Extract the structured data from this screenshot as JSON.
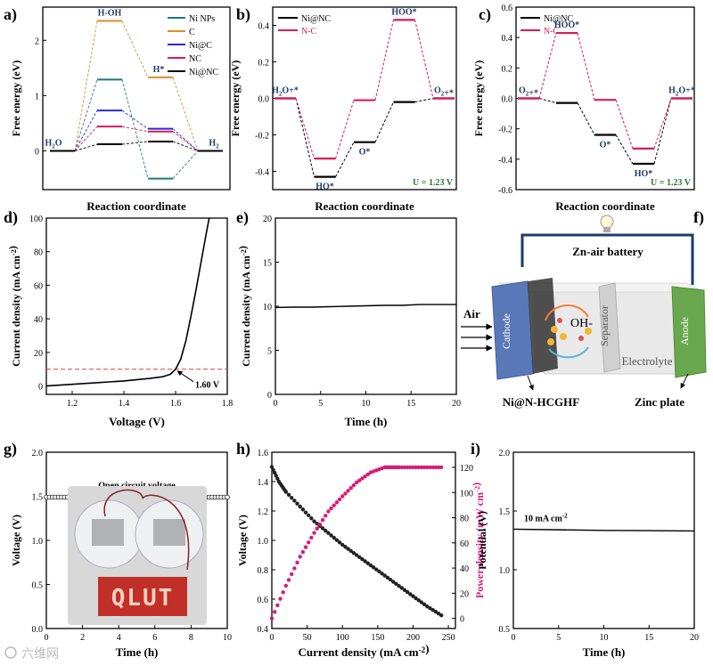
{
  "panel_letters": [
    "a)",
    "b)",
    "c)",
    "d)",
    "e)",
    "f)",
    "g)",
    "h)",
    "i)"
  ],
  "watermark": "六维网",
  "chart_data": [
    {
      "panel": "a",
      "type": "line",
      "ylabel": "Free energy (eV)",
      "xlabel": "Reaction coordinate",
      "ylim": [
        -0.7,
        2.6
      ],
      "yticks": [
        0,
        1,
        2
      ],
      "species": [
        "H2O",
        "H-OH",
        "H*",
        "H2"
      ],
      "series": [
        {
          "name": "Ni NPs",
          "color": "#1a7a7a",
          "values": [
            0,
            1.29,
            -0.5,
            0
          ]
        },
        {
          "name": "C",
          "color": "#e08a2e",
          "values": [
            0,
            2.35,
            1.33,
            0
          ]
        },
        {
          "name": "Ni@C",
          "color": "#2b2bd4",
          "values": [
            0,
            0.73,
            0.4,
            0
          ]
        },
        {
          "name": "NC",
          "color": "#d81b5a",
          "values": [
            0,
            0.44,
            0.35,
            0
          ]
        },
        {
          "name": "Ni@NC",
          "color": "#000000",
          "values": [
            0,
            0.12,
            0.17,
            0
          ]
        }
      ]
    },
    {
      "panel": "b",
      "type": "line",
      "ylabel": "Free energy (eV)",
      "xlabel": "Reaction coordinate",
      "ylim": [
        -0.5,
        0.5
      ],
      "yticks": [
        -0.4,
        -0.2,
        0.0,
        0.2,
        0.4
      ],
      "ytick_labels": [
        "-0.4",
        "-0.2",
        "0.0",
        "0.2",
        "0.4"
      ],
      "species": [
        "H2O+*",
        "HO*",
        "O*",
        "HOO*",
        "O2+*"
      ],
      "annotation": "U = 1.23 V",
      "series": [
        {
          "name": "Ni@NC",
          "color": "#000000",
          "values": [
            0,
            -0.43,
            -0.24,
            -0.02,
            0
          ]
        },
        {
          "name": "N-C",
          "color": "#d81b5a",
          "values": [
            0,
            -0.33,
            -0.01,
            0.43,
            0
          ]
        }
      ]
    },
    {
      "panel": "c",
      "type": "line",
      "ylabel": "Free energy (eV)",
      "xlabel": "Reaction coordinate",
      "ylim": [
        -0.6,
        0.6
      ],
      "yticks": [
        -0.6,
        -0.4,
        -0.2,
        0.0,
        0.2,
        0.4,
        0.6
      ],
      "ytick_labels": [
        "-0.6",
        "-0.4",
        "-0.2",
        "0.0",
        "0.2",
        "0.4",
        "0.6"
      ],
      "species": [
        "O2+*",
        "HOO*",
        "O*",
        "HO*",
        "H2O+*"
      ],
      "annotation": "U = 1.23 V",
      "series": [
        {
          "name": "Ni@NC",
          "color": "#000000",
          "values": [
            0,
            -0.03,
            -0.24,
            -0.43,
            0
          ]
        },
        {
          "name": "N-C",
          "color": "#d81b5a",
          "values": [
            0,
            0.43,
            -0.01,
            -0.33,
            0
          ]
        }
      ]
    },
    {
      "panel": "d",
      "type": "line",
      "ylabel": "Current density (mA cm-2)",
      "xlabel": "Voltage (V)",
      "xlim": [
        1.1,
        1.8
      ],
      "ylim": [
        -5,
        100
      ],
      "xticks": [
        1.2,
        1.4,
        1.6,
        1.8
      ],
      "yticks": [
        0,
        20,
        40,
        60,
        80,
        100
      ],
      "reference_line_y": 10,
      "annotation": "1.60 V",
      "x": [
        1.1,
        1.2,
        1.3,
        1.4,
        1.5,
        1.55,
        1.58,
        1.6,
        1.62,
        1.64,
        1.66,
        1.68,
        1.7,
        1.72,
        1.73
      ],
      "y": [
        0,
        1,
        2,
        3,
        4.5,
        5.5,
        7,
        10,
        16,
        27,
        42,
        58,
        75,
        92,
        100
      ]
    },
    {
      "panel": "e",
      "type": "line",
      "ylabel": "Current density (mA cm-2)",
      "xlabel": "Time (h)",
      "xlim": [
        0,
        20
      ],
      "ylim": [
        0,
        20
      ],
      "xticks": [
        0,
        5,
        10,
        15,
        20
      ],
      "yticks": [
        0,
        5,
        10,
        15,
        20
      ],
      "x": [
        0,
        2,
        4,
        6,
        8,
        10,
        12,
        14,
        16,
        18,
        20
      ],
      "y": [
        9.85,
        9.9,
        9.9,
        9.95,
        10.0,
        10.05,
        10.1,
        10.1,
        10.2,
        10.2,
        10.2
      ]
    },
    {
      "panel": "g",
      "type": "line",
      "ylabel": "Voltage (V)",
      "xlabel": "Time (h)",
      "xlim": [
        0,
        10
      ],
      "ylim": [
        0,
        2.0
      ],
      "xticks": [
        0,
        2,
        4,
        6,
        8,
        10
      ],
      "yticks": [
        0.0,
        0.5,
        1.0,
        1.5,
        2.0
      ],
      "ytick_labels": [
        "0.0",
        "0.5",
        "1.0",
        "1.5",
        "2.0"
      ],
      "annotation": "Open circuit voltage",
      "inset_text": "QLUT",
      "x": [
        0,
        10
      ],
      "y": [
        1.49,
        1.49
      ]
    },
    {
      "panel": "h",
      "type": "scatter",
      "ylabel": "Voltage (V)",
      "y2label": "Power density (mW cm-2)",
      "xlabel": "Current density (mA cm-2)",
      "xlim": [
        0,
        260
      ],
      "ylim": [
        0.4,
        1.6
      ],
      "y2lim": [
        -8,
        132
      ],
      "xticks": [
        0,
        50,
        100,
        150,
        200,
        250
      ],
      "yticks": [
        0.4,
        0.6,
        0.8,
        1.0,
        1.2,
        1.4,
        1.6
      ],
      "y2ticks": [
        0,
        20,
        40,
        60,
        80,
        100,
        120
      ],
      "series": [
        {
          "name": "Voltage",
          "color": "#222222",
          "axis": "left",
          "x": [
            0,
            10,
            20,
            40,
            60,
            80,
            100,
            120,
            140,
            160,
            180,
            200,
            220,
            240
          ],
          "y": [
            1.5,
            1.4,
            1.33,
            1.23,
            1.13,
            1.05,
            0.97,
            0.9,
            0.83,
            0.76,
            0.69,
            0.62,
            0.55,
            0.49
          ]
        },
        {
          "name": "Power density",
          "color": "#d81b7a",
          "axis": "right",
          "x": [
            0,
            20,
            40,
            60,
            80,
            100,
            120,
            140,
            160,
            170,
            180,
            200,
            220,
            240
          ],
          "y": [
            0,
            26,
            49,
            68,
            85,
            97,
            108,
            116,
            120,
            120,
            120,
            120,
            120,
            120
          ]
        }
      ]
    },
    {
      "panel": "i",
      "type": "line",
      "ylabel": "Potential (V)",
      "xlabel": "Time (h)",
      "xlim": [
        0,
        20
      ],
      "ylim": [
        0.5,
        2.0
      ],
      "xticks": [
        0,
        5,
        10,
        15,
        20
      ],
      "yticks": [
        0.5,
        1.0,
        1.5,
        2.0
      ],
      "ytick_labels": [
        "0.5",
        "1.0",
        "1.5",
        "2.0"
      ],
      "annotation": "10 mA cm-2",
      "x": [
        0,
        5,
        10,
        15,
        20
      ],
      "y": [
        1.345,
        1.34,
        1.335,
        1.333,
        1.33
      ]
    }
  ],
  "schematic": {
    "title": "Zn-air battery",
    "air_label": "Air",
    "cathode_label": "Cathode",
    "separator_label": "Separator",
    "anode_label": "Anode",
    "electrolyte_label": "Electrolyte",
    "oh_label": "OH-",
    "catalyst_label": "Ni@N-HCGHF",
    "zinc_label": "Zinc plate",
    "colors": {
      "cathode": "#5a78b8",
      "anode": "#6aa84f",
      "wire": "#1d3b6b"
    }
  }
}
